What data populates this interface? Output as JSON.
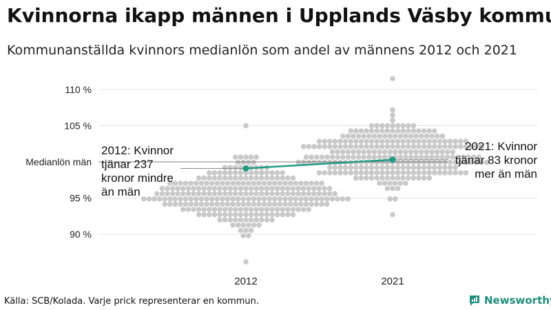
{
  "title": "Kvinnorna ikapp männen i Upplands Väsby kommun",
  "subtitle": "Kommunanställda kvinnors medianlön som andel av männens 2012 och 2021",
  "source": "Källa: SCB/Kolada. Varje prick representerar en kommun.",
  "brand": "Newsworthy",
  "colors": {
    "accent": "#1f9a86",
    "dots": "#c9c9c9",
    "grid": "#e4e4e4"
  },
  "chart_data": {
    "type": "scatter",
    "title": "Kvinnorna ikapp männen i Upplands Väsby kommun",
    "subtitle": "Kommunanställda kvinnors medianlön som andel av männens 2012 och 2021",
    "categories": [
      "2012",
      "2021"
    ],
    "y_ticks": [
      90,
      95,
      105,
      110
    ],
    "y_tick_labels": [
      "90 %",
      "95 %",
      "105 %",
      "110 %"
    ],
    "ylim": [
      86,
      112
    ],
    "reference_line": {
      "label": "Medianlön män",
      "value": 100
    },
    "grid": true,
    "series": [
      {
        "name": "Upplands Väsby",
        "values": [
          99.1,
          100.3
        ]
      }
    ],
    "distribution": {
      "2012": {
        "median": 95.8,
        "min": 86.5,
        "max": 105.3,
        "count": 290
      },
      "2021": {
        "median": 101.0,
        "min": 92.5,
        "max": 111.5,
        "count": 290
      }
    },
    "annotations": [
      {
        "category": "2012",
        "lines": [
          "2012: Kvinnor",
          "tjänar 237",
          "kronor mindre",
          "än män"
        ]
      },
      {
        "category": "2021",
        "lines": [
          "2021: Kvinnor",
          "tjänar 83 kronor",
          "mer än män"
        ]
      }
    ]
  }
}
